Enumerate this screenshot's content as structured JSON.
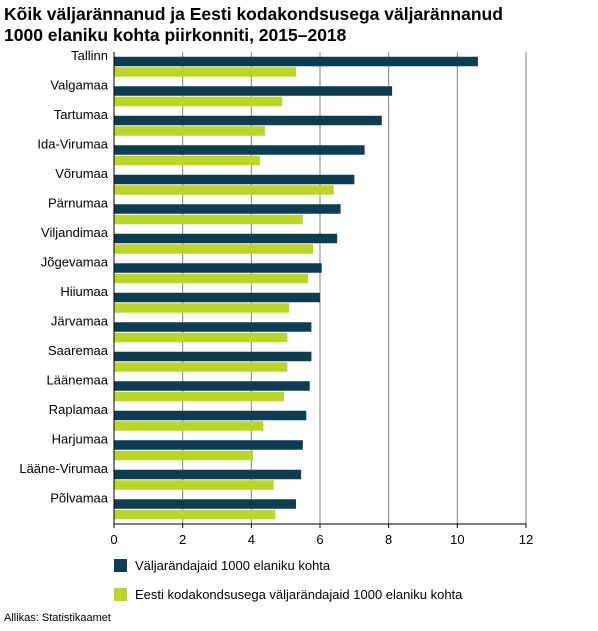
{
  "title_line1": "Kõik väljarännanud ja Eesti kodakondsusega väljarännanud",
  "title_line2": "1000 elaniku kohta piirkonniti, 2015–2018",
  "source": "Allikas: Statistikaamet",
  "colors": {
    "series1": "#0e3d52",
    "series2": "#bcd52a",
    "grid": "#808080",
    "axis": "#000000"
  },
  "chart_data": {
    "type": "bar",
    "orientation": "horizontal",
    "title": "Kõik väljarännanud ja Eesti kodakondsusega väljarännanud 1000 elaniku kohta piirkonniti, 2015–2018",
    "categories": [
      "Tallinn",
      "Valgamaa",
      "Tartumaa",
      "Ida-Virumaa",
      "Võrumaa",
      "Pärnumaa",
      "Viljandimaa",
      "Jõgevamaa",
      "Hiiumaa",
      "Järvamaa",
      "Saaremaa",
      "Läänemaa",
      "Raplamaa",
      "Harjumaa",
      "Lääne-Virumaa",
      "Põlvamaa"
    ],
    "series": [
      {
        "name": "Väljarändajaid 1000 elaniku kohta",
        "values": [
          10.6,
          8.1,
          7.8,
          7.3,
          7.0,
          6.6,
          6.5,
          6.05,
          6.0,
          5.75,
          5.75,
          5.7,
          5.6,
          5.5,
          5.45,
          5.3
        ]
      },
      {
        "name": "Eesti kodakondsusega väljarändajaid 1000 elaniku kohta",
        "values": [
          5.3,
          4.9,
          4.4,
          4.25,
          6.4,
          5.5,
          5.8,
          5.65,
          5.1,
          5.05,
          5.05,
          4.95,
          4.35,
          4.05,
          4.65,
          4.7
        ]
      }
    ],
    "xlim": [
      0,
      12
    ],
    "xticks": [
      "0",
      "2",
      "4",
      "6",
      "8",
      "10",
      "12"
    ],
    "grid": true,
    "legend": "bottom"
  }
}
